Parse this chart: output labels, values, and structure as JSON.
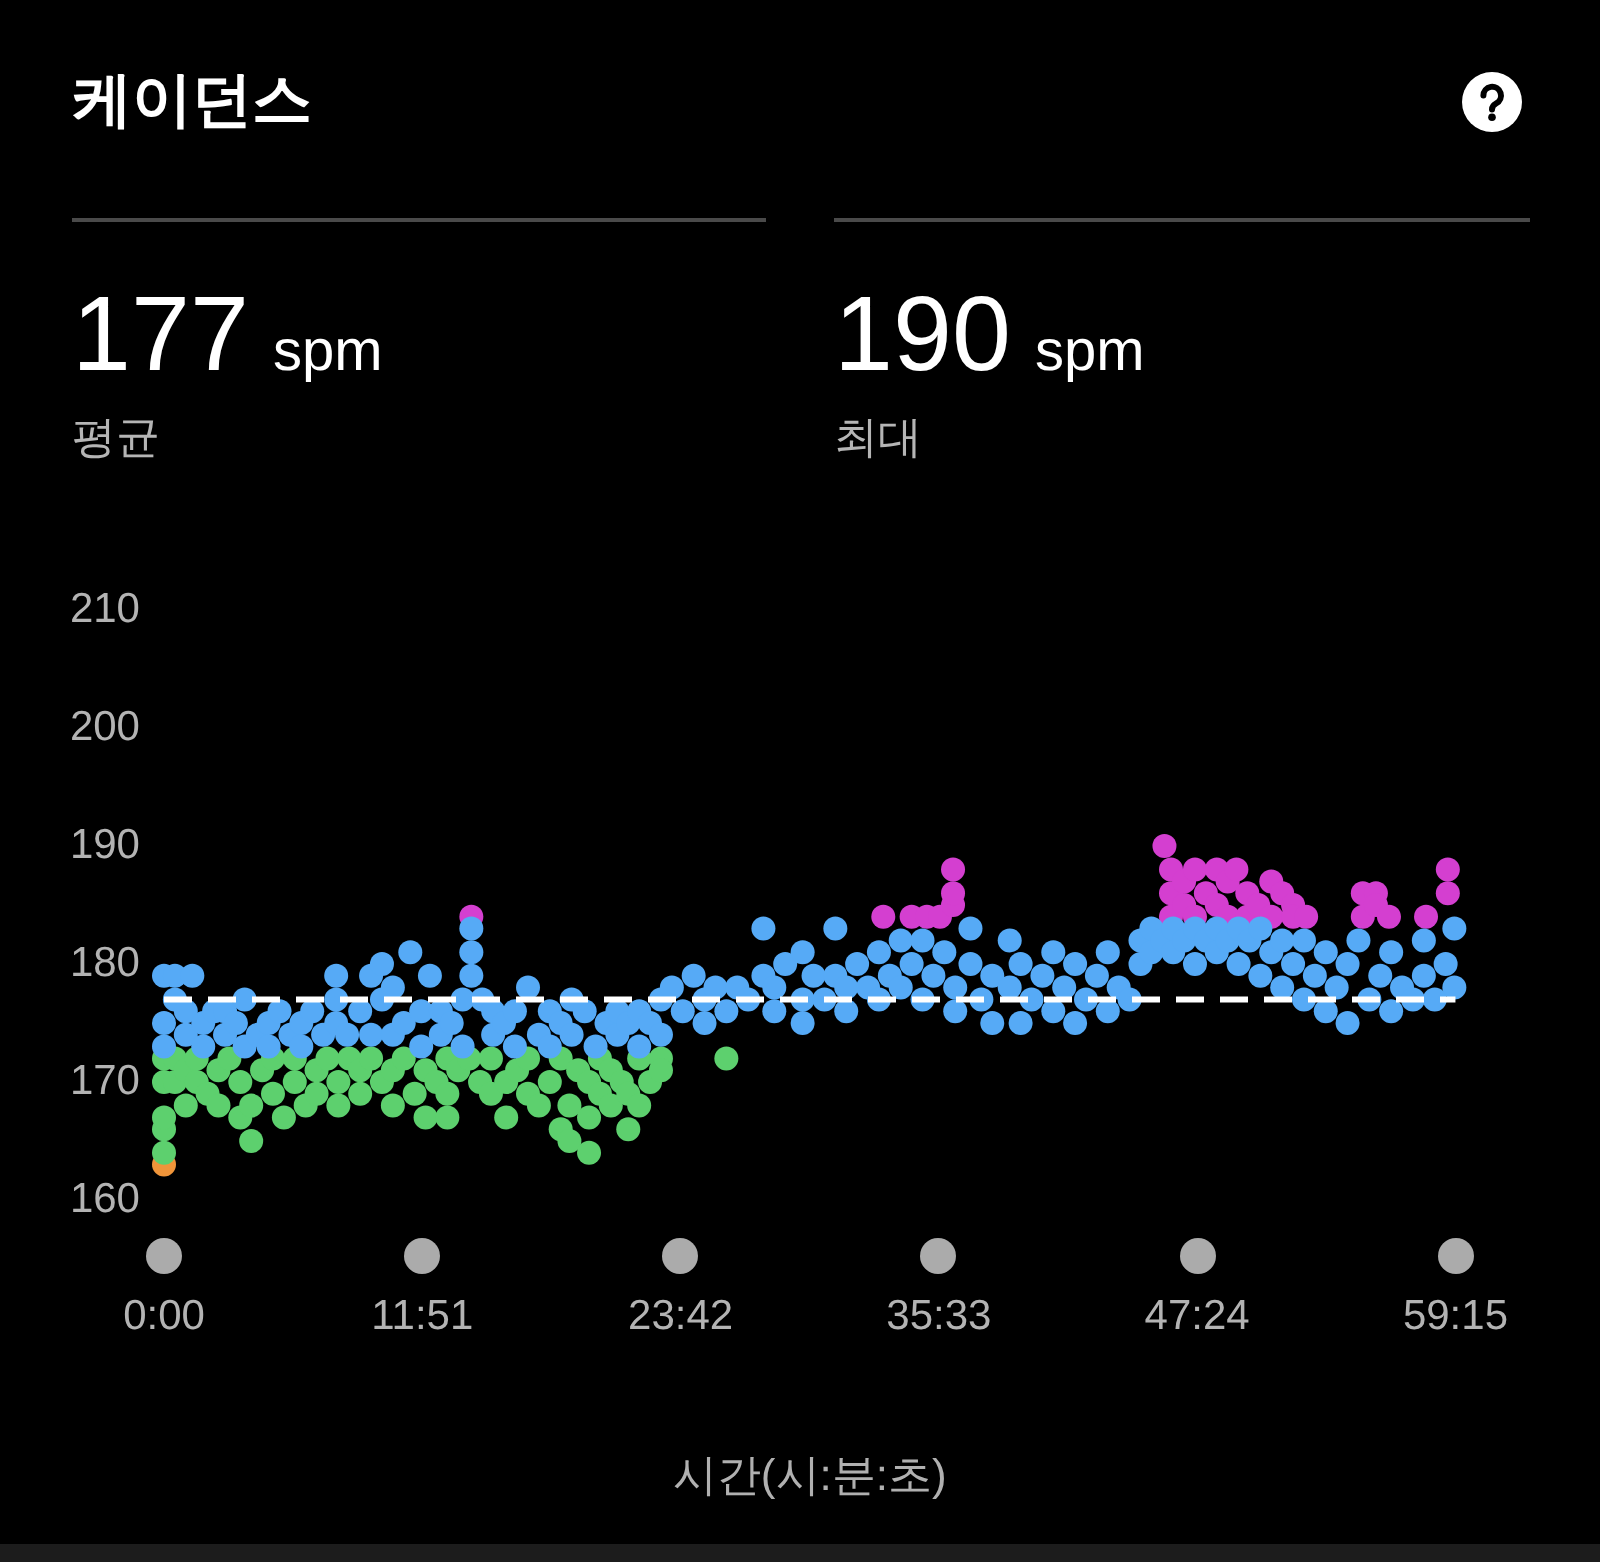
{
  "chart_data": {
    "type": "scatter",
    "title": "케이던스",
    "xlabel": "시간(시:분:초)",
    "annotations": [
      "177",
      "spm",
      "평균",
      "190",
      "spm",
      "최대"
    ],
    "series": [
      {
        "color": "#56aaf6",
        "x": [
          0,
          0,
          0,
          0.5,
          0.5,
          1,
          1,
          1.3,
          1.8,
          1.8,
          2.3,
          2.8,
          2.8,
          3.3,
          3.7,
          3.7,
          4.3,
          4.8,
          4.8,
          5.3,
          5.8,
          6.3,
          6.3,
          6.8,
          7.3,
          7.9,
          7.9,
          7.9,
          8.4,
          9,
          9.5,
          9.5,
          10,
          10,
          10.5,
          10.5,
          11,
          11.3,
          11.8,
          11.8,
          12.2,
          12.7,
          12.7,
          13.2,
          13.7,
          13.7,
          14.1,
          14.1,
          14.1,
          14.6,
          15.1,
          15.1,
          15.6,
          16.1,
          16.1,
          16.7,
          17.2,
          17.7,
          17.7,
          18.2,
          18.7,
          18.7,
          19.3,
          19.8,
          20.3,
          20.8,
          20.8,
          21.3,
          21.8,
          21.8,
          22.3,
          22.8,
          22.8,
          23.3,
          23.8,
          24.3,
          24.8,
          24.8,
          25.3,
          25.8,
          26.3,
          26.8,
          27.5,
          27.5,
          28,
          28,
          28.5,
          29.3,
          29.3,
          29.3,
          29.8,
          30.3,
          30.8,
          30.8,
          31.3,
          31.3,
          31.8,
          32.3,
          32.8,
          32.8,
          33.3,
          33.8,
          33.8,
          34.3,
          34.8,
          34.8,
          35.3,
          35.8,
          36.3,
          36.3,
          37,
          37,
          37.5,
          38,
          38,
          38.8,
          38.8,
          39.3,
          39.3,
          39.8,
          40.3,
          40.8,
          40.8,
          41.3,
          41.8,
          41.8,
          42.3,
          42.8,
          43.3,
          43.3,
          43.8,
          44.3,
          44.8,
          44.8,
          45.3,
          45.3,
          45.8,
          46.3,
          46.3,
          46.8,
          47.3,
          47.3,
          47.8,
          48.3,
          48.3,
          48.8,
          49.3,
          49.3,
          49.8,
          50.3,
          50.3,
          50.8,
          51.3,
          51.3,
          51.8,
          52.3,
          52.3,
          52.8,
          53.3,
          53.3,
          53.8,
          54.3,
          54.3,
          54.8,
          55.3,
          55.8,
          56.3,
          56.3,
          56.8,
          57.3,
          57.8,
          57.8,
          58.3,
          58.8,
          59.2,
          59.2
        ],
        "values": [
          175,
          179,
          173,
          177,
          179,
          174,
          176,
          179,
          175,
          173,
          176,
          174,
          176,
          175,
          177,
          173,
          174,
          175,
          173,
          176,
          174,
          175,
          173,
          176,
          174,
          179,
          177,
          175,
          174,
          176,
          179,
          174,
          180,
          177,
          178,
          174,
          175,
          181,
          176,
          173,
          179,
          174,
          176,
          175,
          177,
          173,
          183,
          181,
          179,
          177,
          174,
          176,
          175,
          173,
          176,
          178,
          174,
          176,
          173,
          175,
          174,
          177,
          176,
          173,
          175,
          174,
          176,
          175,
          173,
          176,
          175,
          177,
          174,
          178,
          176,
          179,
          177,
          175,
          178,
          176,
          178,
          177,
          183,
          179,
          178,
          176,
          180,
          181,
          177,
          175,
          179,
          177,
          183,
          179,
          176,
          178,
          180,
          178,
          181,
          177,
          179,
          182,
          178,
          180,
          182,
          177,
          179,
          181,
          178,
          176,
          183,
          180,
          177,
          179,
          175,
          182,
          178,
          175,
          180,
          177,
          179,
          176,
          181,
          178,
          175,
          180,
          177,
          179,
          176,
          181,
          178,
          177,
          180,
          182,
          183,
          181,
          182,
          183,
          181,
          182,
          183,
          180,
          182,
          183,
          181,
          182,
          180,
          183,
          182,
          183,
          179,
          181,
          178,
          182,
          180,
          177,
          182,
          179,
          176,
          181,
          178,
          175,
          180,
          182,
          177,
          179,
          176,
          181,
          178,
          177,
          182,
          179,
          177,
          180,
          183,
          178
        ]
      },
      {
        "color": "#d43fd0",
        "x": [
          14.1,
          33,
          34.3,
          35,
          35.6,
          36.2,
          36.2,
          36.2,
          45.9,
          46.2,
          46.2,
          46.2,
          46.8,
          46.8,
          47.3,
          47.3,
          47.8,
          48.3,
          48.3,
          48.8,
          48.8,
          49.2,
          49.7,
          49.7,
          50.2,
          50.8,
          50.8,
          51.3,
          51.8,
          51.8,
          52.4,
          55,
          55,
          55.6,
          55.6,
          56.2,
          57.9,
          58.9,
          58.9
        ],
        "values": [
          184,
          184,
          184,
          184,
          184,
          185,
          186,
          188,
          190,
          188,
          186,
          184,
          187,
          185,
          188,
          184,
          186,
          188,
          185,
          184,
          187,
          188,
          186,
          184,
          185,
          187,
          184,
          186,
          185,
          184,
          184,
          186,
          184,
          186,
          185,
          184,
          184,
          188,
          186
        ]
      },
      {
        "color": "#5dd06e",
        "x": [
          0,
          0,
          0,
          0,
          0,
          0.5,
          0.5,
          1,
          1,
          1.5,
          1.5,
          2,
          2.5,
          2.5,
          3,
          3.5,
          3.5,
          4,
          4,
          4.5,
          5,
          5,
          5.5,
          6,
          6,
          6.5,
          7,
          7,
          7.5,
          8,
          8,
          8.5,
          9,
          9,
          9.5,
          10,
          10.5,
          10.5,
          11,
          11.5,
          12,
          12,
          12.5,
          13,
          13,
          13,
          13.5,
          14,
          14.5,
          15,
          15,
          15.7,
          15.7,
          16.2,
          16.7,
          16.7,
          17.2,
          17.7,
          18.2,
          18.2,
          18.6,
          18.6,
          19,
          19.5,
          19.5,
          19.5,
          20,
          20,
          20.5,
          20.5,
          21,
          21.3,
          21.3,
          21.8,
          21.8,
          22.3,
          22.8,
          22.8,
          25.8
        ],
        "values": [
          164,
          166,
          167,
          170,
          172,
          170,
          172,
          168,
          171,
          172,
          170,
          169,
          171,
          168,
          172,
          170,
          167,
          165,
          168,
          171,
          169,
          172,
          167,
          170,
          172,
          168,
          171,
          169,
          172,
          170,
          168,
          172,
          171,
          169,
          172,
          170,
          171,
          168,
          172,
          169,
          171,
          167,
          170,
          167,
          169,
          172,
          171,
          172,
          170,
          172,
          169,
          167,
          170,
          171,
          169,
          172,
          168,
          170,
          172,
          166,
          165,
          168,
          171,
          164,
          167,
          170,
          169,
          172,
          171,
          168,
          170,
          166,
          169,
          172,
          168,
          170,
          172,
          171,
          172
        ]
      },
      {
        "color": "#f0953a",
        "x": [
          0
        ],
        "values": [
          163
        ]
      }
    ],
    "xlim": [
      0,
      59.25
    ],
    "xticks": [
      {
        "value": 0,
        "label": "0:00"
      },
      {
        "value": 11.85,
        "label": "11:51"
      },
      {
        "value": 23.7,
        "label": "23:42"
      },
      {
        "value": 35.55,
        "label": "35:33"
      },
      {
        "value": 47.4,
        "label": "47:24"
      },
      {
        "value": 59.25,
        "label": "59:15"
      }
    ],
    "ylim": [
      160,
      210
    ],
    "yticks": [
      160,
      170,
      180,
      190,
      200,
      210
    ],
    "ref_lines": [
      {
        "axis": "y",
        "value": 177,
        "color": "#ffffff",
        "line_style": "dashed"
      }
    ],
    "marker": "circle",
    "grid": false,
    "legend": false
  }
}
